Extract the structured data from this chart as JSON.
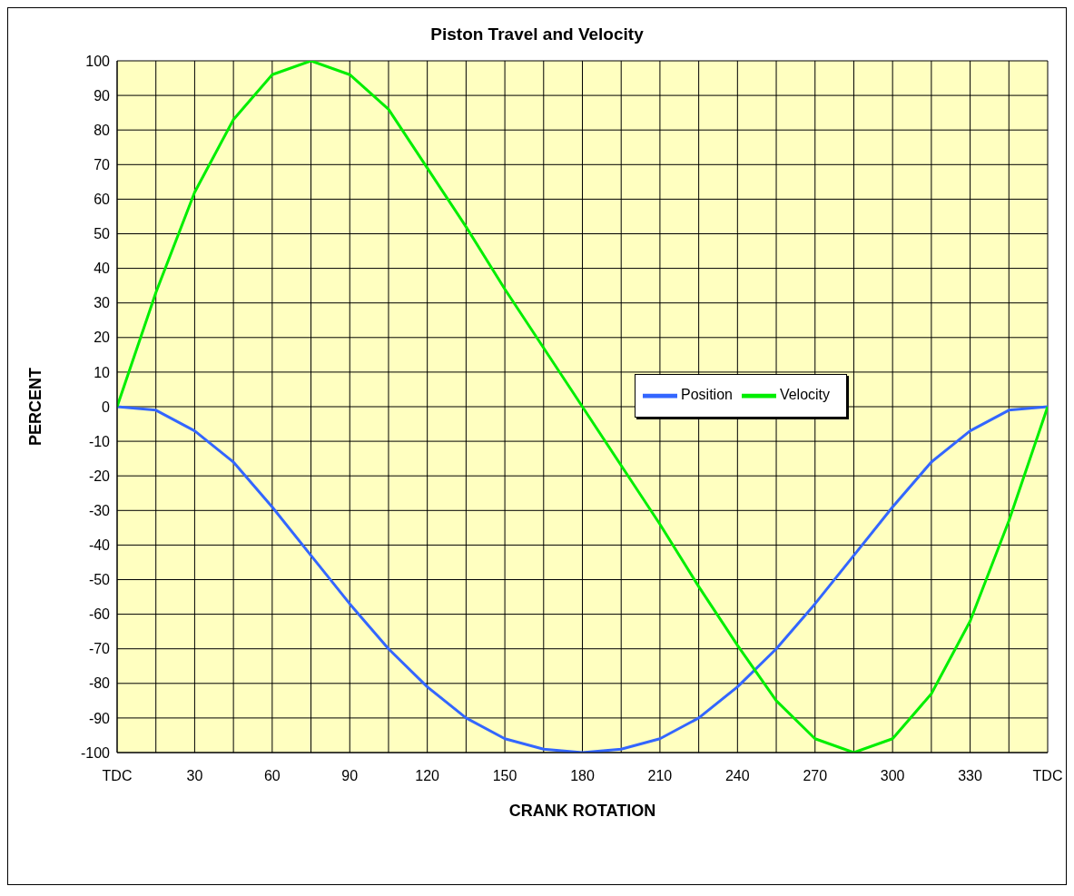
{
  "chart_data": {
    "type": "line",
    "title": "Piston Travel and Velocity",
    "xlabel": "CRANK ROTATION",
    "ylabel": "PERCENT",
    "x": [
      0,
      15,
      30,
      45,
      60,
      75,
      90,
      105,
      120,
      135,
      150,
      165,
      180,
      195,
      210,
      225,
      240,
      255,
      270,
      285,
      300,
      315,
      330,
      345,
      360
    ],
    "series": [
      {
        "name": "Position",
        "color": "#3366ff",
        "values": [
          0,
          -1,
          -7,
          -16,
          -29,
          -43,
          -57,
          -70,
          -81,
          -90,
          -96,
          -99,
          -100,
          -99,
          -96,
          -90,
          -81,
          -70,
          -57,
          -43,
          -29,
          -16,
          -7,
          -1,
          0
        ]
      },
      {
        "name": "Velocity",
        "color": "#00ee00",
        "values": [
          0,
          33,
          62,
          83,
          96,
          100,
          96,
          86,
          69,
          52,
          34,
          17,
          0,
          -17,
          -34,
          -52,
          -69,
          -85,
          -96,
          -100,
          -96,
          -83,
          -62,
          -33,
          0
        ]
      }
    ],
    "xlim": [
      0,
      360
    ],
    "xticks": [
      {
        "value": 0,
        "label": "TDC"
      },
      {
        "value": 15,
        "label": null
      },
      30,
      {
        "value": 45,
        "label": null
      },
      60,
      {
        "value": 75,
        "label": null
      },
      90,
      {
        "value": 105,
        "label": null
      },
      120,
      {
        "value": 135,
        "label": null
      },
      150,
      {
        "value": 165,
        "label": null
      },
      180,
      {
        "value": 195,
        "label": null
      },
      210,
      {
        "value": 225,
        "label": null
      },
      240,
      {
        "value": 255,
        "label": null
      },
      270,
      {
        "value": 285,
        "label": null
      },
      300,
      {
        "value": 315,
        "label": null
      },
      330,
      {
        "value": 345,
        "label": null
      },
      {
        "value": 360,
        "label": "TDC"
      }
    ],
    "ylim": [
      -100,
      100
    ],
    "yticks": [
      -100,
      -90,
      -80,
      -70,
      -60,
      -50,
      -40,
      -30,
      -20,
      -10,
      0,
      10,
      20,
      30,
      40,
      50,
      60,
      70,
      80,
      90,
      100
    ],
    "grid": true,
    "legend": "right",
    "marker": "none",
    "line_style": "solid"
  }
}
